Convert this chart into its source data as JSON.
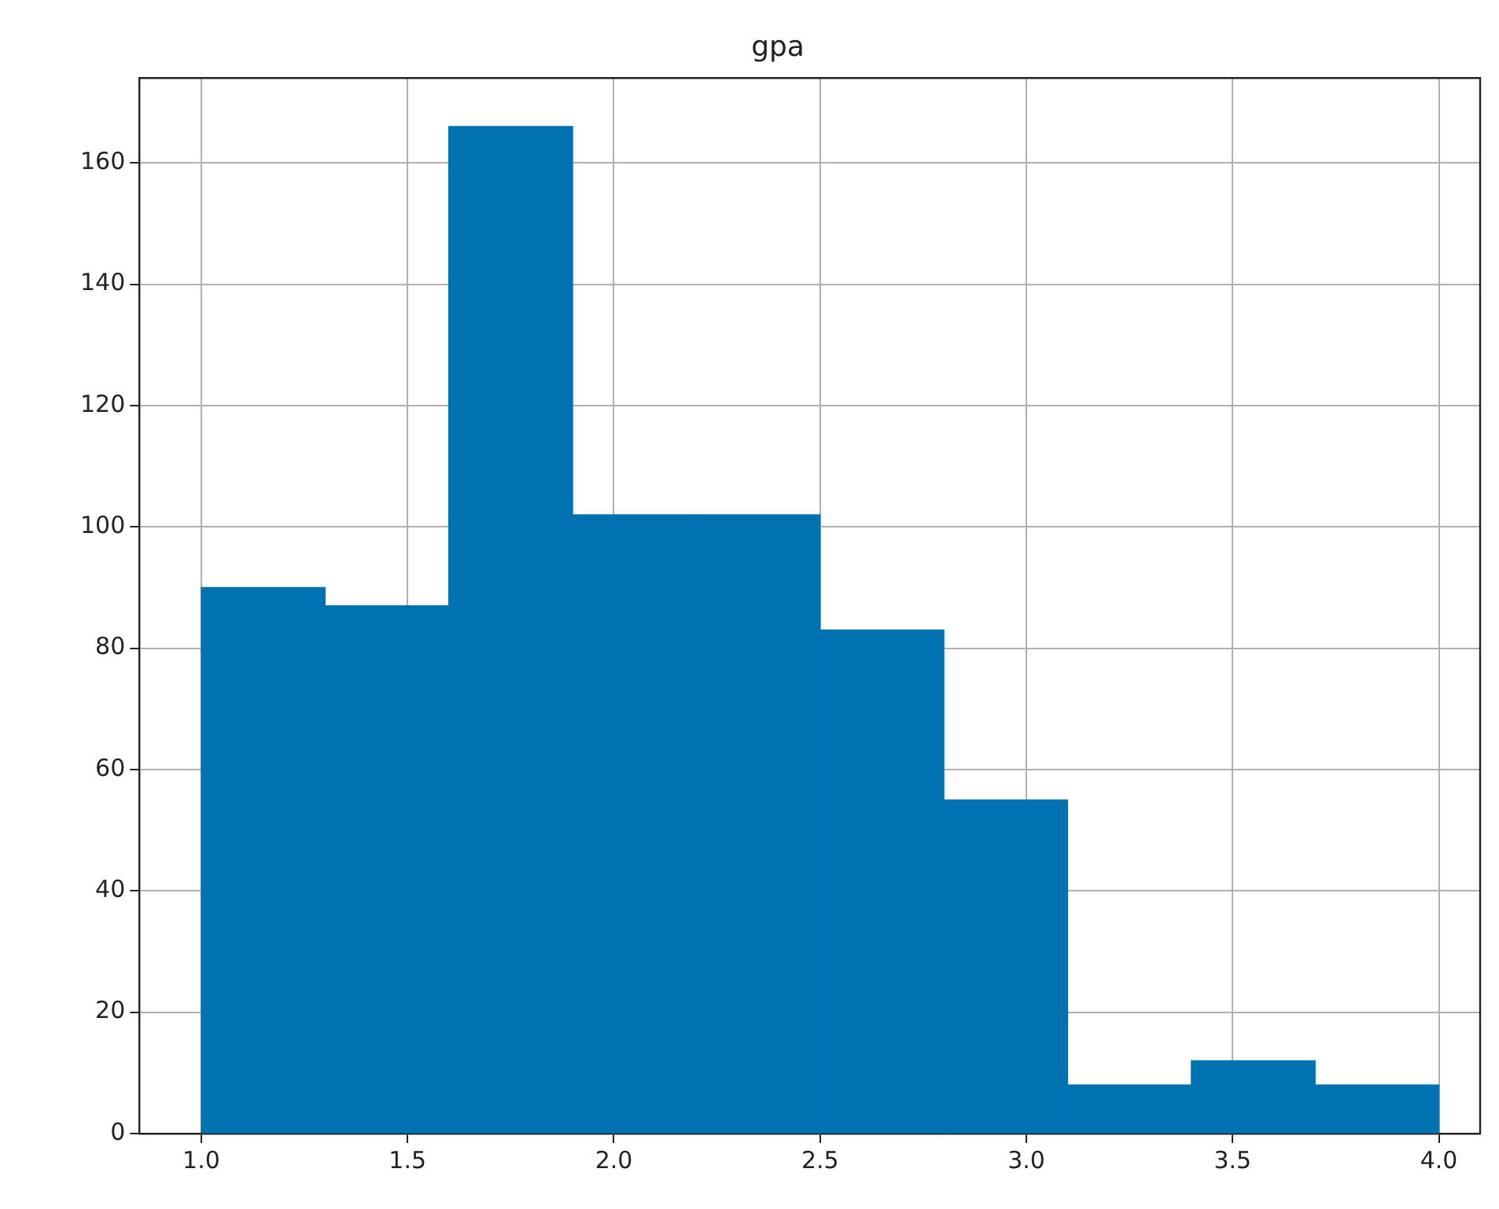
{
  "chart_data": {
    "type": "histogram",
    "title": "gpa",
    "bins": [
      1.0,
      1.3,
      1.6,
      1.9,
      2.2,
      2.5,
      2.8,
      3.1,
      3.4,
      3.7,
      4.0
    ],
    "values": [
      90,
      87,
      166,
      102,
      102,
      83,
      55,
      8,
      12,
      8
    ],
    "color": "#0072b2",
    "xlim": [
      0.85,
      4.1
    ],
    "xticks": [
      {
        "value": 1,
        "label": "1.0"
      },
      {
        "value": 1.5,
        "label": "1.5"
      },
      {
        "value": 2,
        "label": "2.0"
      },
      {
        "value": 2.5,
        "label": "2.5"
      },
      {
        "value": 3,
        "label": "3.0"
      },
      {
        "value": 3.5,
        "label": "3.5"
      },
      {
        "value": 4,
        "label": "4.0"
      }
    ],
    "ylim": [
      0,
      174
    ],
    "yticks": [
      0,
      20,
      40,
      60,
      80,
      100,
      120,
      140,
      160
    ],
    "grid": true
  }
}
